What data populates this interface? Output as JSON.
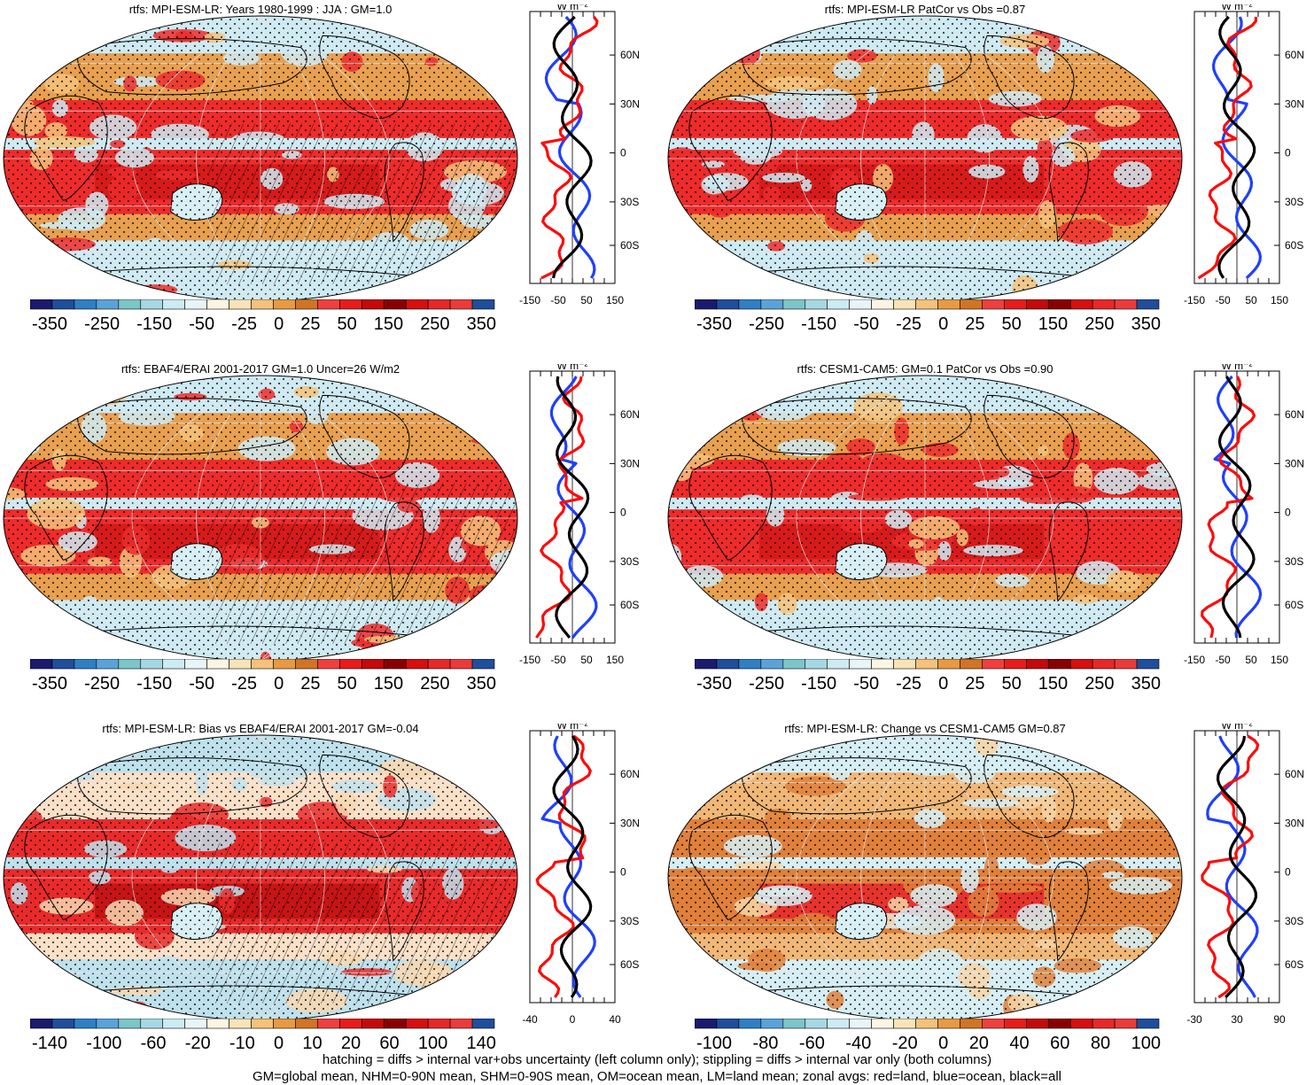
{
  "panels": [
    {
      "title": "rtfs: MPI-ESM-LR: Years 1980-1999 : JJA : GM=1.0",
      "theme": "warm",
      "cbar_labels": [
        "-350",
        "-250",
        "-150",
        "-50",
        "-25",
        "0",
        "25",
        "50",
        "150",
        "250",
        "350"
      ],
      "zonal_ticks": [
        "-150",
        "-50",
        "50",
        "150"
      ],
      "lat_labels": [
        "60N",
        "30N",
        "0",
        "30S",
        "60S"
      ],
      "unit": "W m⁻²"
    },
    {
      "title": "rtfs: MPI-ESM-LR PatCor vs Obs =0.87",
      "theme": "warm",
      "cbar_labels": [
        "-350",
        "-250",
        "-150",
        "-50",
        "-25",
        "0",
        "25",
        "50",
        "150",
        "250",
        "350"
      ],
      "zonal_ticks": [
        "-150",
        "-50",
        "50",
        "150"
      ],
      "lat_labels": [
        "60N",
        "30N",
        "0",
        "30S",
        "60S"
      ],
      "unit": "W m⁻²"
    },
    {
      "title": "rtfs: EBAF4/ERAI 2001-2017 GM=1.0 Uncer=26 W/m2",
      "theme": "warm",
      "cbar_labels": [
        "-350",
        "-250",
        "-150",
        "-50",
        "-25",
        "0",
        "25",
        "50",
        "150",
        "250",
        "350"
      ],
      "zonal_ticks": [
        "-150",
        "-50",
        "50",
        "150"
      ],
      "lat_labels": [
        "60N",
        "30N",
        "0",
        "30S",
        "60S"
      ],
      "unit": "W m⁻²"
    },
    {
      "title": "rtfs: CESM1-CAM5: GM=0.1 PatCor vs Obs =0.90",
      "theme": "warm",
      "cbar_labels": [
        "-350",
        "-250",
        "-150",
        "-50",
        "-25",
        "0",
        "25",
        "50",
        "150",
        "250",
        "350"
      ],
      "zonal_ticks": [
        "-150",
        "-50",
        "50",
        "150"
      ],
      "lat_labels": [
        "60N",
        "30N",
        "0",
        "30S",
        "60S"
      ],
      "unit": "W m⁻²"
    },
    {
      "title": "rtfs: MPI-ESM-LR: Bias vs EBAF4/ERAI 2001-2017 GM=-0.04",
      "theme": "bias",
      "cbar_labels": [
        "-140",
        "-100",
        "-60",
        "-20",
        "-10",
        "0",
        "10",
        "20",
        "60",
        "100",
        "140"
      ],
      "zonal_ticks": [
        "-40",
        "0",
        "40"
      ],
      "lat_labels": [
        "60N",
        "30N",
        "0",
        "30S",
        "60S"
      ],
      "unit": "W m⁻²"
    },
    {
      "title": "rtfs: MPI-ESM-LR: Change vs CESM1-CAM5 GM=0.87",
      "theme": "change",
      "cbar_labels": [
        "-100",
        "-80",
        "-60",
        "-40",
        "-20",
        "0",
        "20",
        "40",
        "60",
        "80",
        "100"
      ],
      "zonal_ticks": [
        "-30",
        "30",
        "90"
      ],
      "lat_labels": [
        "60N",
        "30N",
        "0",
        "30S",
        "60S"
      ],
      "unit": "W m⁻²"
    }
  ],
  "palette": [
    "#1a1a6e",
    "#1f4e9c",
    "#2f7fc4",
    "#5aa3d9",
    "#7cc5c9",
    "#a6d8e4",
    "#cdebf2",
    "#e8f5f8",
    "#fdf5e3",
    "#f9e3b8",
    "#f4c27a",
    "#e89a42",
    "#d27425",
    "#ef3f3f",
    "#e81c1c",
    "#c40a0a",
    "#8a0000",
    "#d60f0f",
    "#e62828",
    "#ea3b3b",
    "#1f4e9c"
  ],
  "footer": {
    "line1": "hatching = diffs > internal var+obs uncertainty (left column only); stippling = diffs > internal var only (both columns)",
    "line2": "GM=global mean, NHM=0-90N mean, SHM=0-90S mean, OM=ocean mean, LM=land mean; zonal avgs: red=land, blue=ocean, black=all"
  },
  "zonal_legend": {
    "red": "land",
    "blue": "ocean",
    "black": "all"
  }
}
